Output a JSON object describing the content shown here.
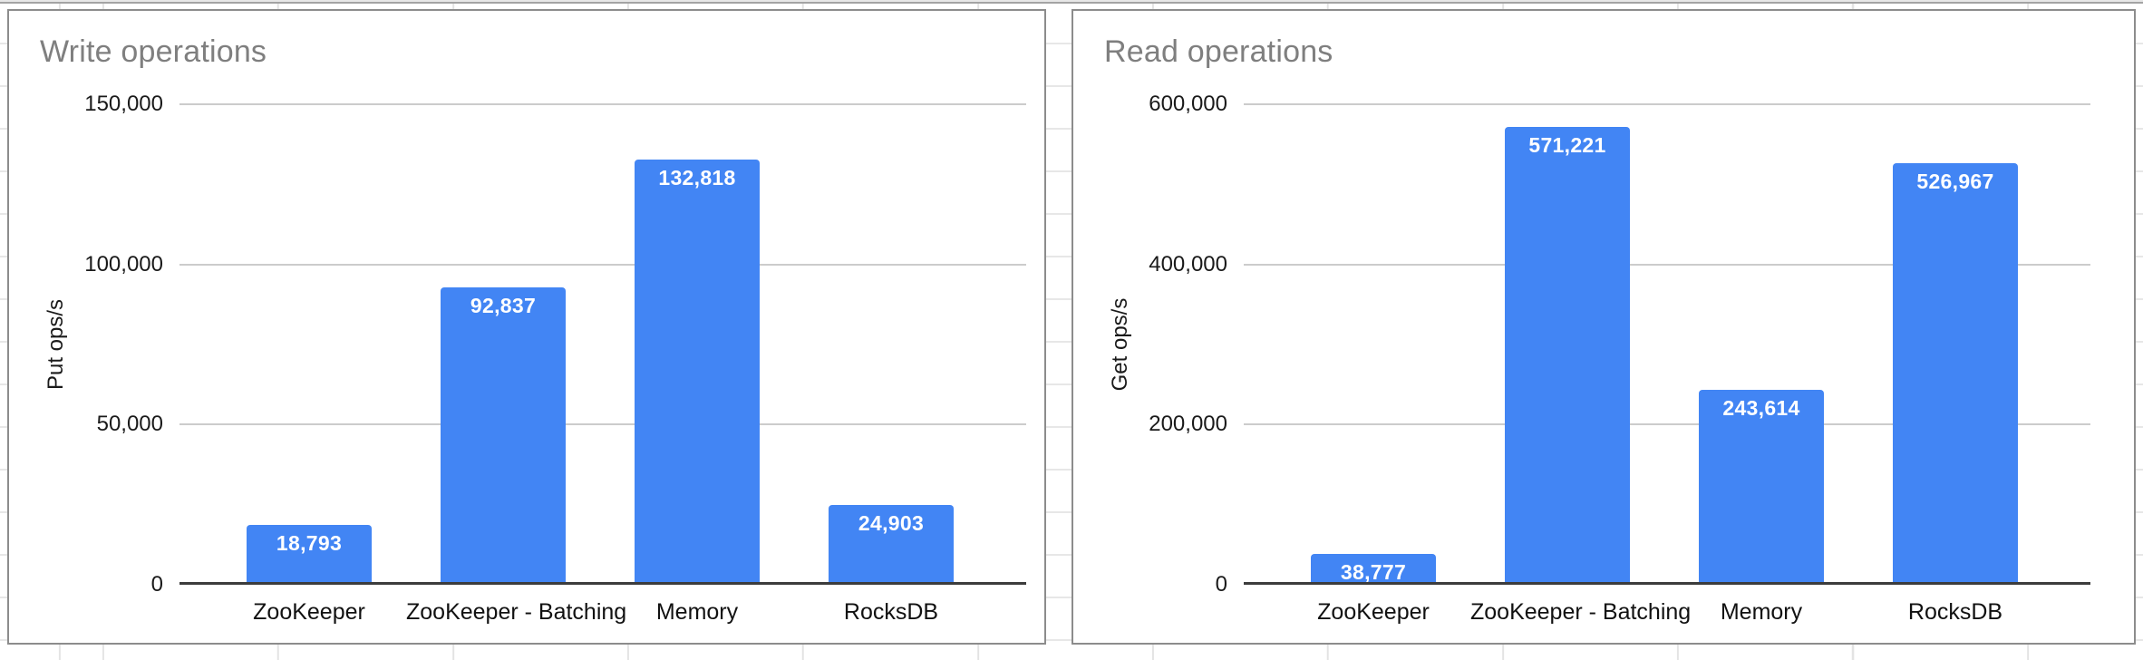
{
  "chart_data": [
    {
      "type": "bar",
      "title": "Write operations",
      "xlabel": "",
      "ylabel": "Put ops/s",
      "categories": [
        "ZooKeeper",
        "ZooKeeper - Batching",
        "Memory",
        "RocksDB"
      ],
      "values": [
        18793,
        92837,
        132818,
        24903
      ],
      "value_labels": [
        "18,793",
        "92,837",
        "132,818",
        "24,903"
      ],
      "y_ticks": [
        "0",
        "50,000",
        "100,000",
        "150,000"
      ],
      "ylim": [
        0,
        150000
      ],
      "grid": true,
      "legend": "none",
      "bar_color": "#4285f4",
      "title_color": "#7f7f7f"
    },
    {
      "type": "bar",
      "title": "Read operations",
      "xlabel": "",
      "ylabel": "Get ops/s",
      "categories": [
        "ZooKeeper",
        "ZooKeeper - Batching",
        "Memory",
        "RocksDB"
      ],
      "values": [
        38777,
        571221,
        243614,
        526967
      ],
      "value_labels": [
        "38,777",
        "571,221",
        "243,614",
        "526,967"
      ],
      "y_ticks": [
        "0",
        "200,000",
        "400,000",
        "600,000"
      ],
      "ylim": [
        0,
        600000
      ],
      "grid": true,
      "legend": "none",
      "bar_color": "#4285f4",
      "title_color": "#7f7f7f"
    }
  ]
}
